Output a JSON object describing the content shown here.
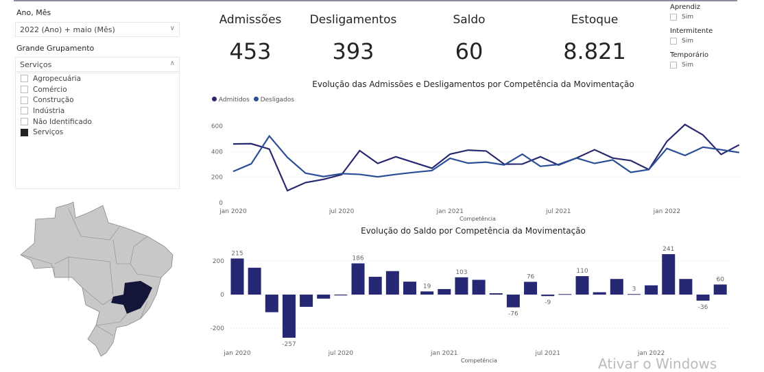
{
  "filters": {
    "ano_mes": {
      "label": "Ano, Mês",
      "value": "2022 (Ano) + maio (Mês)"
    },
    "grande_grupamento": {
      "label": "Grande Grupamento",
      "value": "Serviços",
      "options": [
        {
          "label": "Agropecuária",
          "checked": false
        },
        {
          "label": "Comércio",
          "checked": false
        },
        {
          "label": "Construção",
          "checked": false
        },
        {
          "label": "Indústria",
          "checked": false
        },
        {
          "label": "Não Identificado",
          "checked": false
        },
        {
          "label": "Serviços",
          "checked": true
        }
      ]
    }
  },
  "kpis": [
    {
      "title": "Admissões",
      "value": "453"
    },
    {
      "title": "Desligamentos",
      "value": "393"
    },
    {
      "title": "Saldo",
      "value": "60"
    },
    {
      "title": "Estoque",
      "value": "8.821"
    }
  ],
  "slicers": [
    {
      "title": "Aprendiz",
      "option": "Sim",
      "checked": false
    },
    {
      "title": "Intermitente",
      "option": "Sim",
      "checked": false
    },
    {
      "title": "Temporário",
      "option": "Sim",
      "checked": false
    }
  ],
  "map": {
    "highlighted_state": "Minas Gerais",
    "highlight_color": "#141639",
    "base_color": "#c8c8c8"
  },
  "watermark": "Ativar o Windows",
  "chart_data": [
    {
      "type": "line",
      "title": "Evolução das Admissões e Desligamentos por Competência da Movimentação",
      "xlabel": "Competência",
      "ylabel": "",
      "ylim": [
        0,
        600
      ],
      "yticks": [
        "0",
        "200",
        "400",
        "600"
      ],
      "xticks": [
        {
          "label": "jan 2020",
          "index": 0
        },
        {
          "label": "jul 2020",
          "index": 6
        },
        {
          "label": "jan 2021",
          "index": 12
        },
        {
          "label": "jul 2021",
          "index": 18
        },
        {
          "label": "jan 2022",
          "index": 24
        }
      ],
      "grid": true,
      "legend": "top-left",
      "x": [
        "jan 2020",
        "fev 2020",
        "mar 2020",
        "abr 2020",
        "mai 2020",
        "jun 2020",
        "jul 2020",
        "ago 2020",
        "set 2020",
        "out 2020",
        "nov 2020",
        "dez 2020",
        "jan 2021",
        "fev 2021",
        "mar 2021",
        "abr 2021",
        "mai 2021",
        "jun 2021",
        "jul 2021",
        "ago 2021",
        "set 2021",
        "out 2021",
        "nov 2021",
        "dez 2021",
        "jan 2022",
        "fev 2022",
        "mar 2022",
        "abr 2022",
        "mai 2022"
      ],
      "series": [
        {
          "name": "Admitidos",
          "color": "#27286f",
          "values": [
            460,
            462,
            420,
            95,
            158,
            183,
            220,
            408,
            308,
            360,
            315,
            270,
            380,
            412,
            405,
            302,
            303,
            360,
            295,
            350,
            415,
            350,
            330,
            260,
            480,
            612,
            530,
            378,
            453
          ]
        },
        {
          "name": "Desligados",
          "color": "#2a4e96",
          "values": [
            245,
            305,
            522,
            355,
            232,
            205,
            228,
            222,
            203,
            222,
            238,
            252,
            348,
            310,
            318,
            296,
            380,
            285,
            300,
            350,
            308,
            335,
            238,
            260,
            425,
            370,
            435,
            415,
            393
          ]
        }
      ]
    },
    {
      "type": "bar",
      "title": "Evolução do Saldo por Competência da Movimentação",
      "xlabel": "Competência",
      "ylim": [
        -300,
        250
      ],
      "yticks": [
        "-200",
        "0",
        "200"
      ],
      "xticks": [
        {
          "label": "jan 2020",
          "index": 0
        },
        {
          "label": "jul 2020",
          "index": 6
        },
        {
          "label": "jan 2021",
          "index": 12
        },
        {
          "label": "jul 2021",
          "index": 18
        },
        {
          "label": "jan 2022",
          "index": 24
        }
      ],
      "grid": true,
      "color": "#262873",
      "values": [
        215,
        160,
        -105,
        -257,
        -73,
        -24,
        -5,
        186,
        106,
        140,
        77,
        19,
        33,
        103,
        88,
        8,
        -76,
        76,
        -9,
        3,
        110,
        14,
        93,
        3,
        55,
        241,
        93,
        -36,
        60
      ],
      "data_labels": {
        "0": "215",
        "3": "-257",
        "7": "186",
        "11": "19",
        "13": "103",
        "16": "-76",
        "17": "76",
        "18": "-9",
        "20": "110",
        "23": "3",
        "25": "241",
        "27": "-36",
        "28": "60"
      }
    }
  ]
}
